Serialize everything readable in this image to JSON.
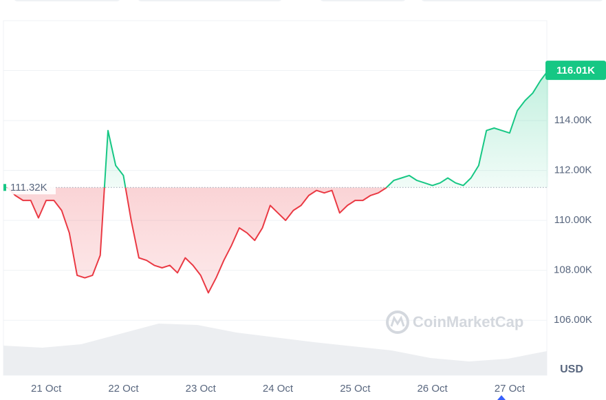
{
  "chart_data": {
    "type": "baseline-line",
    "values": [
      111320,
      111000,
      110800,
      110800,
      110100,
      110800,
      110800,
      110400,
      109500,
      107800,
      107700,
      107800,
      108600,
      113600,
      112200,
      111800,
      110000,
      108500,
      108400,
      108200,
      108100,
      108200,
      107900,
      108500,
      108200,
      107800,
      107100,
      107700,
      108400,
      109000,
      109700,
      109500,
      109200,
      109700,
      110600,
      110300,
      110000,
      110400,
      110600,
      111000,
      111200,
      111100,
      111200,
      110300,
      110600,
      110800,
      110800,
      111000,
      111100,
      111300,
      111600,
      111700,
      111800,
      111600,
      111500,
      111400,
      111500,
      111700,
      111500,
      111400,
      111700,
      112200,
      113600,
      113700,
      113600,
      113500,
      114400,
      114800,
      115100,
      115600,
      116010
    ],
    "xlim": [
      0,
      70
    ],
    "xticks": [
      {
        "value": 5,
        "label": "21 Oct"
      },
      {
        "value": 15,
        "label": "22 Oct"
      },
      {
        "value": 25,
        "label": "23 Oct"
      },
      {
        "value": 35,
        "label": "24 Oct"
      },
      {
        "value": 45,
        "label": "25 Oct"
      },
      {
        "value": 55,
        "label": "26 Oct"
      },
      {
        "value": 65,
        "label": "27 Oct"
      }
    ],
    "ylim": [
      103800,
      118000
    ],
    "yticks": [
      {
        "value": 106000,
        "label": "106.00K"
      },
      {
        "value": 108000,
        "label": "108.00K"
      },
      {
        "value": 110000,
        "label": "110.00K"
      },
      {
        "value": 112000,
        "label": "112.00K"
      },
      {
        "value": 114000,
        "label": "114.00K"
      },
      {
        "value": 116000,
        "label": "116.00K"
      }
    ],
    "grid": true,
    "baseline": {
      "value": 111320,
      "label": "111.32K"
    },
    "last_price": {
      "value": 116010,
      "label": "116.01K"
    },
    "up_color": "#16c784",
    "down_color": "#ea3943",
    "currency": "USD",
    "watermark": "CoinMarketCap",
    "volume": {
      "values": [
        43,
        40,
        45,
        60,
        75,
        73,
        62,
        55,
        48,
        42,
        36,
        25,
        20,
        24,
        35
      ],
      "ylim": [
        0,
        515
      ],
      "color": "#eceef1"
    }
  }
}
